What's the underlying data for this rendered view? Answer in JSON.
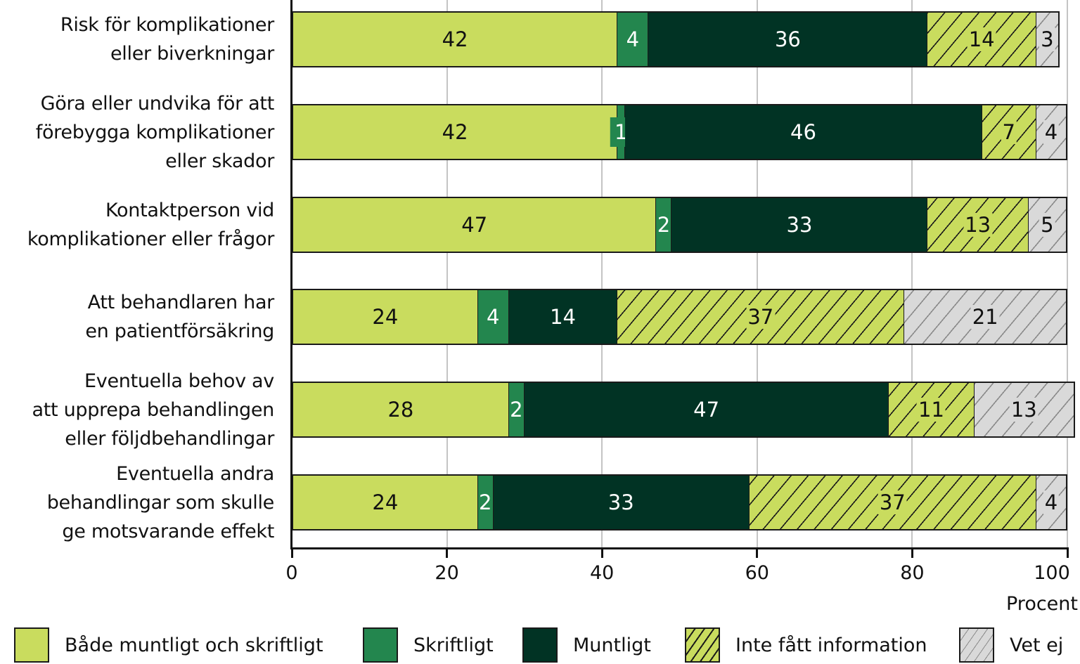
{
  "chart_data": {
    "type": "bar",
    "orientation": "horizontal",
    "stacked": true,
    "title": "",
    "xlabel": "Procent",
    "ylabel": "",
    "xlim": [
      0,
      100
    ],
    "x_ticks": [
      0,
      20,
      40,
      60,
      80,
      100
    ],
    "grid": true,
    "legend_position": "bottom",
    "categories": [
      "Risk för komplikationer eller biverkningar",
      "Göra eller undvika för att förebygga komplikationer eller skador",
      "Kontaktperson vid komplikationer eller frågor",
      "Att behandlaren har en patientförsäkring",
      "Eventuella behov av att upprepa behandlingen eller följdbehandlingar",
      "Eventuella andra behandlingar som skulle ge motsvarande effekt"
    ],
    "series": [
      {
        "name": "Både muntligt och skriftligt",
        "color": "#c9dc5e",
        "pattern": "solid",
        "values": [
          42,
          42,
          47,
          24,
          28,
          24
        ]
      },
      {
        "name": "Skriftligt",
        "color": "#23864e",
        "pattern": "solid",
        "values": [
          4,
          1,
          2,
          4,
          2,
          2
        ]
      },
      {
        "name": "Muntligt",
        "color": "#013324",
        "pattern": "solid",
        "values": [
          36,
          46,
          33,
          14,
          47,
          33
        ]
      },
      {
        "name": "Inte fått information",
        "color": "#c9dc5e",
        "pattern": "hatch",
        "values": [
          14,
          7,
          13,
          37,
          11,
          37
        ]
      },
      {
        "name": "Vet ej",
        "color": "#d9d9d9",
        "pattern": "hatch",
        "values": [
          3,
          4,
          5,
          21,
          13,
          4
        ]
      }
    ]
  },
  "rows": [
    {
      "label_lines": [
        "Risk för komplikationer",
        "eller biverkningar"
      ]
    },
    {
      "label_lines": [
        "Göra eller undvika för att",
        "förebygga komplikationer",
        "eller skador"
      ]
    },
    {
      "label_lines": [
        "Kontaktperson vid",
        "komplikationer eller frågor"
      ]
    },
    {
      "label_lines": [
        "Att behandlaren har",
        "en patientförsäkring"
      ]
    },
    {
      "label_lines": [
        "Eventuella behov av",
        "att upprepa behandlingen",
        "eller följdbehandlingar"
      ]
    },
    {
      "label_lines": [
        "Eventuella andra",
        "behandlingar som skulle",
        "ge motsvarande effekt"
      ]
    }
  ],
  "axis": {
    "ticks": [
      "0",
      "20",
      "40",
      "60",
      "80",
      "100"
    ],
    "unit": "Procent"
  },
  "legend": [
    {
      "label": "Både muntligt och skriftligt"
    },
    {
      "label": "Skriftligt"
    },
    {
      "label": "Muntligt"
    },
    {
      "label": "Inte fått information"
    },
    {
      "label": "Vet ej"
    }
  ]
}
